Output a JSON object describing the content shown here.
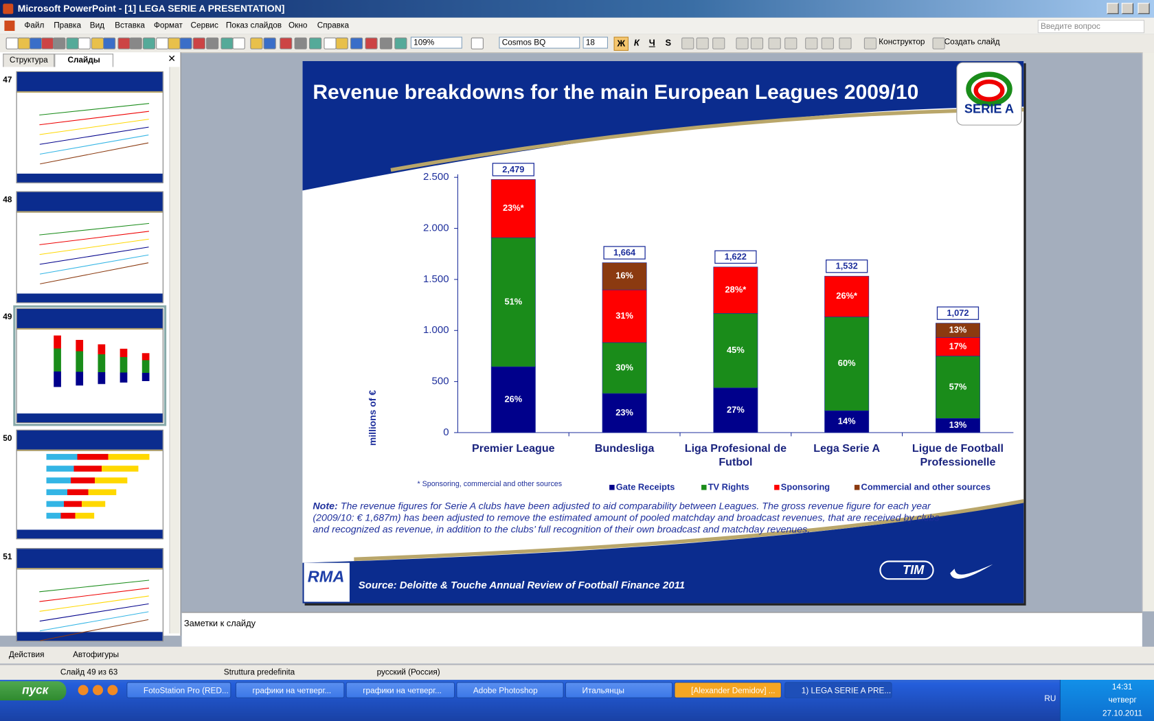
{
  "window": {
    "title": "Microsoft PowerPoint - [1] LEGA SERIE A PRESENTATION]"
  },
  "menu": [
    "Файл",
    "Правка",
    "Вид",
    "Вставка",
    "Формат",
    "Сервис",
    "Показ слайдов",
    "Окно",
    "Справка"
  ],
  "help_box": "Введите вопрос",
  "toolbar": {
    "zoom": "109%",
    "font": "Cosmos BQ",
    "font_size": "18",
    "format_buttons": [
      "Ж",
      "К",
      "Ч",
      "S"
    ],
    "buttons": [
      "Конструктор",
      "Создать слайд"
    ]
  },
  "panel": {
    "tabs": [
      "Структура",
      "Слайды"
    ],
    "slide_numbers": [
      47,
      48,
      49,
      50,
      51
    ]
  },
  "slide": {
    "title": "Revenue breakdowns for the main European Leagues 2009/10",
    "logos": {
      "league": "SERIE A",
      "footer_left": "RMA",
      "sponsor": "TIM"
    },
    "chart_data": {
      "type": "bar",
      "stacked": true,
      "categories": [
        "Premier League",
        "Bundesliga",
        "Liga Profesional de Futbol",
        "Lega Serie A",
        "Ligue de Football Professionelle"
      ],
      "y_label": "millions of €",
      "ylim": [
        0,
        2500
      ],
      "yticks": [
        0,
        500,
        {
          "value": 1000,
          "label": "1.000"
        },
        {
          "value": 1500,
          "label": "1.500"
        },
        {
          "value": 2000,
          "label": "2.000"
        },
        {
          "value": 2500,
          "label": "2.500"
        }
      ],
      "series": [
        {
          "name": "Gate Receipts",
          "color": "#00008b",
          "values": [
            645,
            383,
            438,
            214,
            139
          ],
          "share_labels": [
            "26%",
            "23%",
            "27%",
            "14%",
            "13%"
          ]
        },
        {
          "name": "TV Rights",
          "color": "#1a8c1a",
          "values": [
            1264,
            499,
            730,
            919,
            611
          ],
          "share_labels": [
            "51%",
            "30%",
            "45%",
            "60%",
            "57%"
          ]
        },
        {
          "name": "Sponsoring",
          "color": "#ff0000",
          "values": [
            570,
            516,
            454,
            399,
            182
          ],
          "share_labels": [
            "23%*",
            "31%",
            "28%*",
            "26%*",
            "17%"
          ]
        },
        {
          "name": "Commercial and other sources",
          "color": "#8b3a10",
          "values": [
            null,
            266,
            null,
            null,
            140
          ],
          "share_labels": [
            null,
            "16%",
            null,
            null,
            "13%"
          ]
        }
      ],
      "totals": [
        2479,
        1664,
        1622,
        1532,
        1072
      ],
      "total_labels": [
        "2,479",
        "1,664",
        "1,622",
        "1,532",
        "1,072"
      ]
    },
    "footnote": "* Sponsoring, commercial and other sources",
    "note": {
      "label": "Note:",
      "text": "The revenue figures for Serie A clubs have been adjusted to aid comparability between Leagues. The gross revenue figure for each year (2009/10: € 1,687m) has been adjusted to remove the estimated amount of  pooled matchday and broadcast revenues, that are received by clubs and recognized as revenue, in addition to the clubs’ full recognition of their own broadcast and matchday revenues."
    },
    "source": "Source: Deloitte & Touche Annual Review of Football Finance 2011"
  },
  "notes_pane": "Заметки к слайду",
  "drawing_toolbar": [
    "Действия",
    "Автофигуры"
  ],
  "status_bar": [
    "Слайд 49 из 63",
    "Struttura predefinita",
    "русский (Россия)"
  ],
  "taskbar": {
    "start": "пуск",
    "items": [
      "FotoStation Pro (RED...",
      "графики на четверг...",
      "графики на четверг...",
      "Adobe Photoshop",
      "Итальянцы",
      "[Alexander Demidov] ...",
      "1) LEGA SERIE A PRE..."
    ],
    "tray": {
      "lang": "RU",
      "time": "14:31",
      "day": "четверг",
      "date": "27.10.2011"
    }
  }
}
